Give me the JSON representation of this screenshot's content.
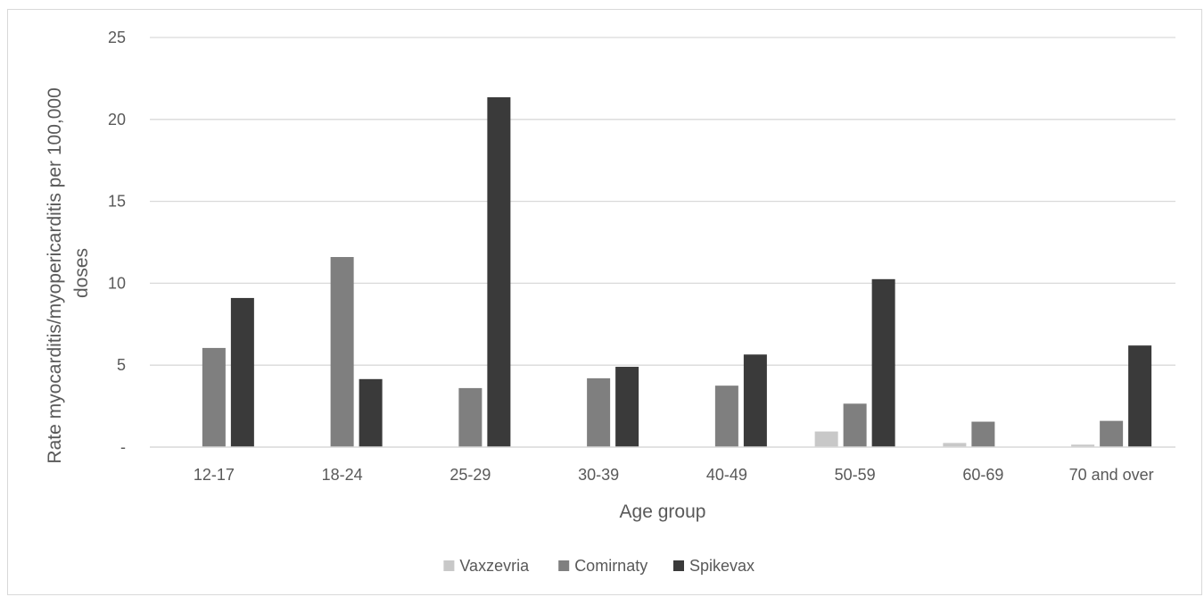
{
  "chart_data": {
    "type": "bar",
    "title": "",
    "xlabel": "Age group",
    "ylabel_lines": [
      "Rate myocarditis/myopericarditis per 100,000",
      "doses"
    ],
    "ylim": [
      0,
      25
    ],
    "yticks": [
      0,
      5,
      10,
      15,
      20,
      25
    ],
    "ytick_labels": [
      "-",
      "5",
      "10",
      "15",
      "20",
      "25"
    ],
    "grid": true,
    "legend_position": "bottom",
    "categories": [
      "12-17",
      "18-24",
      "25-29",
      "30-39",
      "40-49",
      "50-59",
      "60-69",
      "70 and over"
    ],
    "series": [
      {
        "name": "Vaxzevria",
        "color": "#c8c8c8",
        "values": [
          0,
          0,
          0,
          0,
          0,
          0.95,
          0.25,
          0.15
        ]
      },
      {
        "name": "Comirnaty",
        "color": "#7f7f7f",
        "values": [
          6.05,
          11.6,
          3.6,
          4.2,
          3.75,
          2.65,
          1.55,
          1.6
        ]
      },
      {
        "name": "Spikevax",
        "color": "#3a3a3a",
        "values": [
          9.1,
          4.15,
          21.35,
          4.9,
          5.65,
          10.25,
          0,
          6.2
        ]
      }
    ]
  }
}
